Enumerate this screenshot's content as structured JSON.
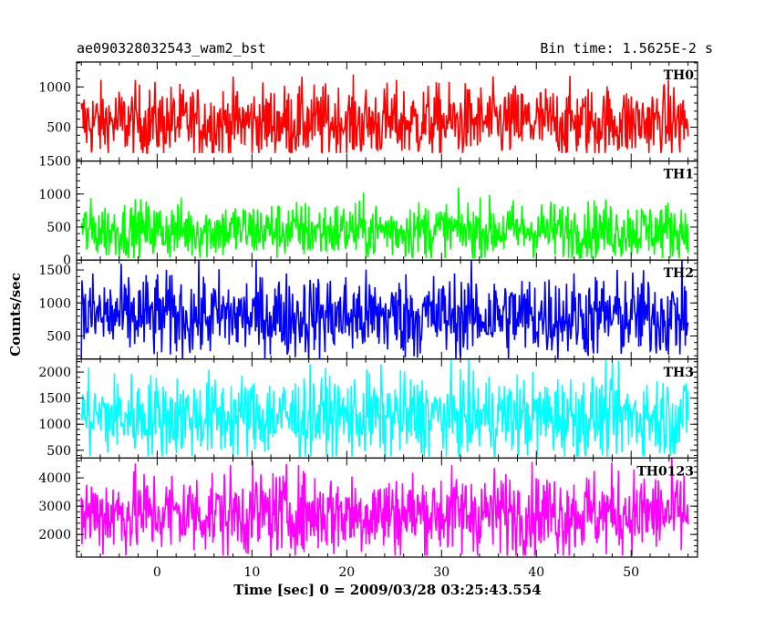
{
  "header": {
    "left": "ae090328032543_wam2_bst",
    "right": "Bin time: 1.5625E-2 s"
  },
  "chart_data": {
    "type": "line",
    "xlabel": "Time [sec] 0 = 2009/03/28 03:25:43.554",
    "ylabel": "Counts/sec",
    "xlim": [
      -8.5,
      57
    ],
    "xticks": [
      0,
      10,
      20,
      30,
      40,
      50
    ],
    "x_range": [
      -8,
      56
    ],
    "panels": [
      {
        "name": "TH0",
        "color": "#ff0000",
        "ylim": [
          80,
          1310
        ],
        "yticks": [
          500,
          1000
        ],
        "mean": 560,
        "spread": 230,
        "lower": 180,
        "upper": 1310
      },
      {
        "name": "TH1",
        "color": "#00ff00",
        "ylim": [
          0,
          1500
        ],
        "yticks": [
          0,
          500,
          1000,
          1500
        ],
        "mean": 450,
        "spread": 220,
        "lower": 30,
        "upper": 1500
      },
      {
        "name": "TH2",
        "color": "#0000ff",
        "ylim": [
          150,
          1650
        ],
        "yticks": [
          500,
          1000,
          1500
        ],
        "mean": 800,
        "spread": 320,
        "lower": 150,
        "upper": 1650
      },
      {
        "name": "TH3",
        "color": "#00ffff",
        "ylim": [
          350,
          2250
        ],
        "yticks": [
          500,
          1000,
          1500,
          2000
        ],
        "mean": 1150,
        "spread": 400,
        "lower": 380,
        "upper": 2250
      },
      {
        "name": "TH0123",
        "color": "#ff00ff",
        "ylim": [
          1200,
          4700
        ],
        "yticks": [
          2000,
          3000,
          4000
        ],
        "mean": 2750,
        "spread": 750,
        "lower": 1250,
        "upper": 4700
      }
    ]
  }
}
